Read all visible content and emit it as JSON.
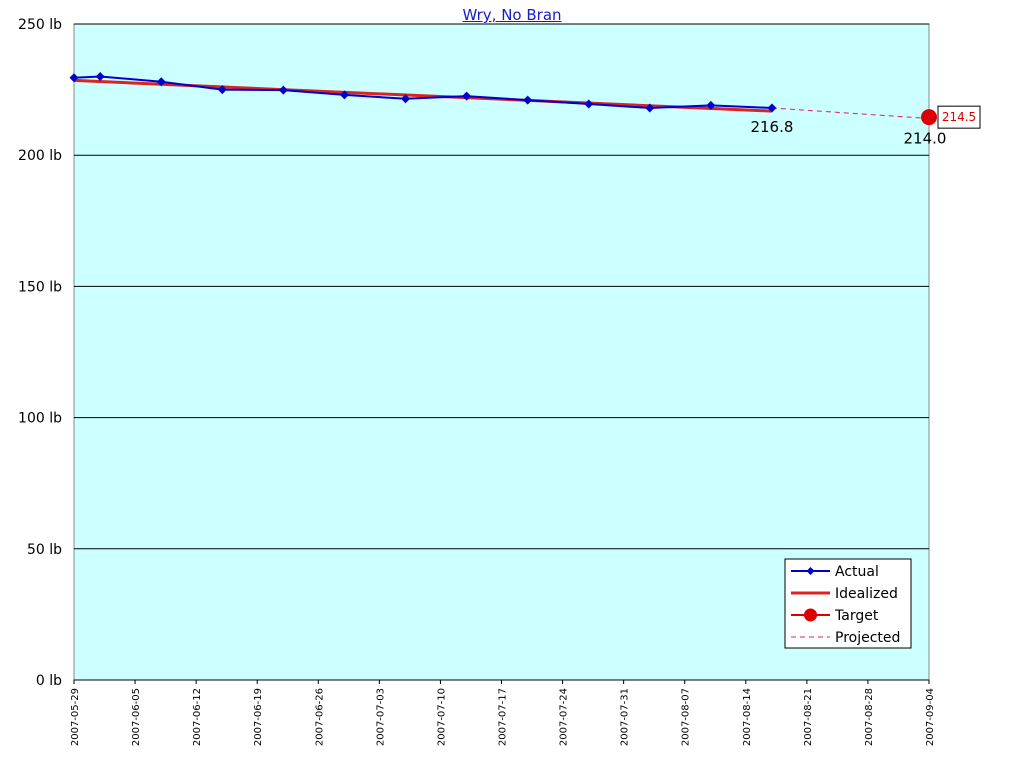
{
  "chart_data": {
    "type": "line",
    "title": "Wry, No Bran",
    "xlabel": "",
    "ylabel": "",
    "x_axis": {
      "type": "date",
      "range": [
        "2007-05-29",
        "2007-09-04"
      ]
    },
    "ylim": [
      0,
      250
    ],
    "y_ticks": [
      "0 lb",
      "50 lb",
      "100 lb",
      "150 lb",
      "200 lb",
      "250 lb"
    ],
    "y_tick_values": [
      0,
      50,
      100,
      150,
      200,
      250
    ],
    "x_ticks": [
      "2007-05-29",
      "2007-06-05",
      "2007-06-12",
      "2007-06-19",
      "2007-06-26",
      "2007-07-03",
      "2007-07-10",
      "2007-07-17",
      "2007-07-24",
      "2007-07-31",
      "2007-08-07",
      "2007-08-14",
      "2007-08-21",
      "2007-08-28",
      "2007-09-04"
    ],
    "grid": true,
    "plot_background": "#ccffff",
    "legend_position": "bottom-right",
    "series": [
      {
        "name": "Actual",
        "color": "#0000cc",
        "marker": "diamond",
        "x": [
          "2007-05-29",
          "2007-06-01",
          "2007-06-08",
          "2007-06-15",
          "2007-06-22",
          "2007-06-29",
          "2007-07-06",
          "2007-07-13",
          "2007-07-20",
          "2007-07-27",
          "2007-08-03",
          "2007-08-10",
          "2007-08-17"
        ],
        "y": [
          229.5,
          230.0,
          228.0,
          225.0,
          224.8,
          223.0,
          221.5,
          222.5,
          221.0,
          219.5,
          218.0,
          219.0,
          218.0
        ]
      },
      {
        "name": "Idealized",
        "color": "#dd2222",
        "x": [
          "2007-05-29",
          "2007-08-17"
        ],
        "y": [
          228.5,
          216.8
        ]
      },
      {
        "name": "Target",
        "color": "#dd0000",
        "marker": "circle",
        "x": [
          "2007-09-04"
        ],
        "y": [
          214.5
        ]
      },
      {
        "name": "Projected",
        "color": "#dd2266",
        "dashed": true,
        "x": [
          "2007-08-17",
          "2007-09-04"
        ],
        "y": [
          218.0,
          214.0
        ]
      }
    ],
    "annotations": [
      {
        "text": "216.8",
        "x": "2007-08-17",
        "y": 216.8
      },
      {
        "text": "214.0",
        "x": "2007-09-04",
        "y": 214.0
      },
      {
        "text": "214.5",
        "x": "2007-09-04",
        "y": 214.5,
        "boxed": true,
        "color": "#dd0000"
      }
    ]
  }
}
